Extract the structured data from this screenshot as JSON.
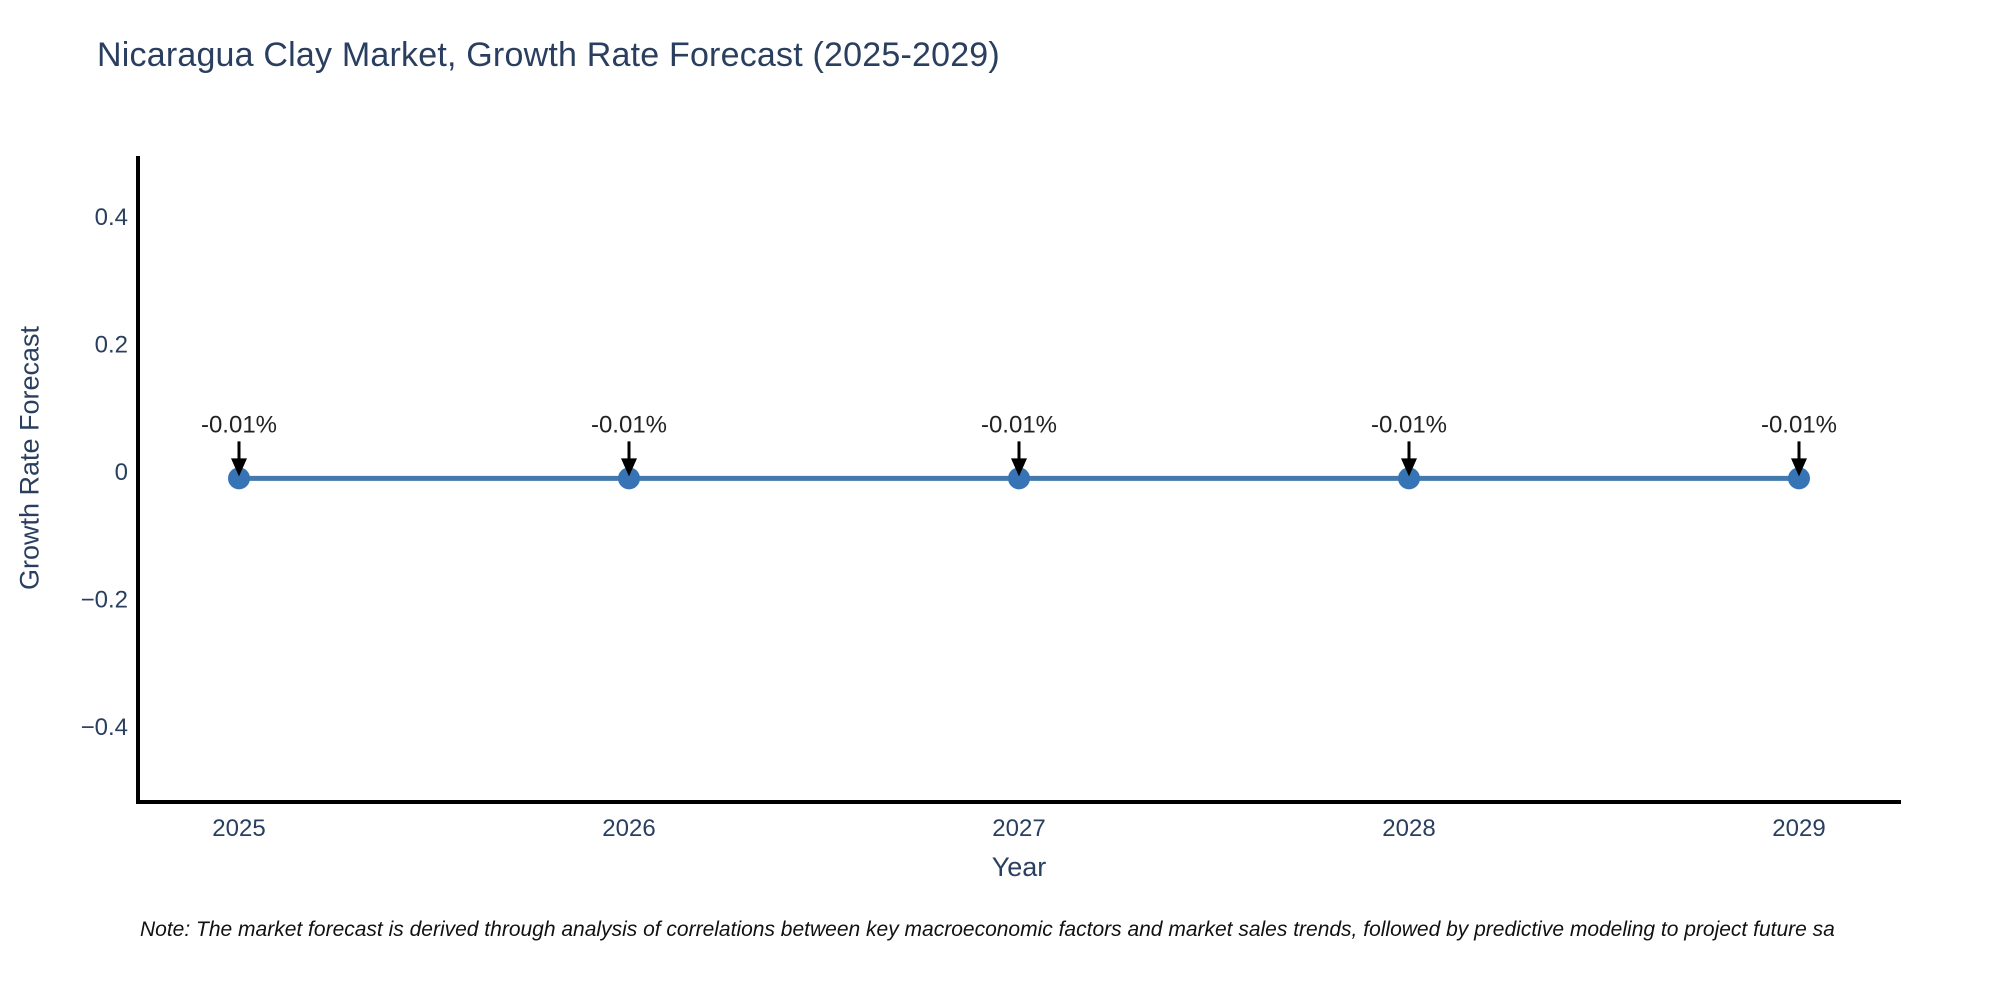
{
  "note": {
    "text": "Note: The market forecast is derived through analysis of correlations between key macroeconomic factors and market sales trends, followed by predictive modeling to project future sa"
  },
  "chart_data": {
    "type": "line",
    "title": "Nicaragua Clay Market, Growth Rate Forecast (2025-2029)",
    "xlabel": "Year",
    "ylabel": "Growth Rate Forecast",
    "categories": [
      "2025",
      "2026",
      "2027",
      "2028",
      "2029"
    ],
    "series": [
      {
        "name": "Growth Rate Forecast",
        "values": [
          -0.01,
          -0.01,
          -0.01,
          -0.01,
          -0.01
        ]
      }
    ],
    "point_annotations": [
      "-0.01%",
      "-0.01%",
      "-0.01%",
      "-0.01%",
      "-0.01%"
    ],
    "ytick_values": [
      0.4,
      0.2,
      0,
      -0.2,
      -0.4
    ],
    "ytick_labels": [
      "0.4",
      "0.2",
      "0",
      "−0.2",
      "−0.4"
    ],
    "ylim": [
      -0.52,
      0.49
    ],
    "grid": false,
    "legend_position": "none",
    "colors": {
      "line": "#4379ac",
      "marker": "#3674b5",
      "axis": "#000000",
      "tick_text": "#2a3f5f",
      "title_text": "#2a3f5f",
      "annotation_text": "#222222",
      "arrow": "#000000"
    }
  }
}
